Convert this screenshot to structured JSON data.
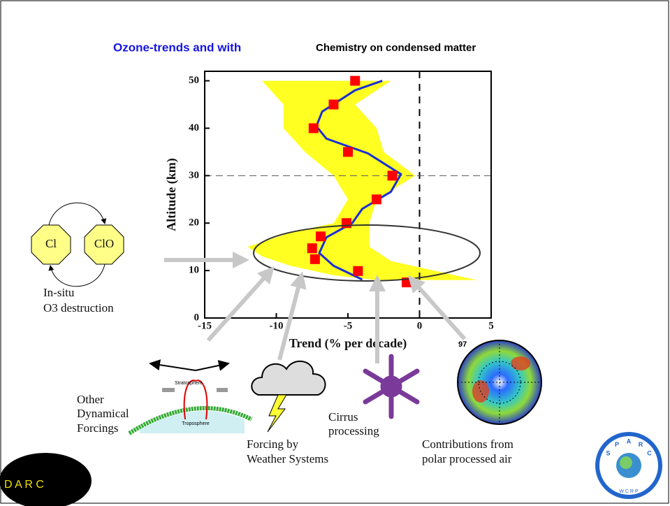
{
  "chart_data": {
    "type": "scatter",
    "x_label": "Trend (% per decade)",
    "y_label": "Altitude (km)",
    "xlim": [
      -15,
      5
    ],
    "ylim": [
      0,
      52
    ],
    "xticks": [
      -15,
      -10,
      -5,
      0,
      5
    ],
    "yticks": [
      0,
      10,
      20,
      30,
      40,
      50
    ],
    "vline": 0,
    "hline": 30,
    "points": {
      "color": "#ff0000",
      "x": [
        -4.5,
        -6.0,
        -7.4,
        -5.0,
        -1.9,
        -3.0,
        -5.1,
        -6.9,
        -7.5,
        -7.3,
        -4.3,
        -0.9
      ],
      "y": [
        50,
        45,
        40,
        35,
        30,
        25,
        20,
        17.2,
        14.7,
        12.4,
        9.9,
        7.5
      ]
    },
    "line": {
      "color": "#1a2fd6",
      "x": [
        -2.6,
        -4.5,
        -6.8,
        -7.2,
        -6.5,
        -3.6,
        -1.3,
        -2.0,
        -4.0,
        -4.7,
        -6.5,
        -7.0,
        -6.0,
        -4.0
      ],
      "y": [
        50,
        48,
        43.5,
        40.4,
        37.8,
        34.7,
        30.3,
        26.6,
        23,
        20,
        17,
        13.7,
        11,
        8.1
      ]
    },
    "envelope": {
      "color": "#ffff22",
      "x": [
        -11,
        -9.5,
        -9.5,
        -8,
        -6,
        -5,
        -6,
        -9,
        -12,
        -11,
        -9,
        -6,
        -3,
        4,
        1,
        -2,
        -3.5,
        -3.5,
        -3,
        -0.3,
        -2.5,
        -3,
        -4.5,
        -2
      ],
      "y": [
        50,
        45,
        40,
        35,
        30,
        25,
        20,
        18,
        15,
        13,
        11,
        9,
        8,
        8,
        10,
        12,
        15,
        20,
        25,
        30,
        35,
        40,
        45,
        50
      ]
    }
  },
  "slide": {
    "title_blue": "Ozone-trends and with",
    "title_black": "Chemistry on condensed matter",
    "cycle_left": "Cl",
    "cycle_right": "ClO",
    "insitu": [
      "In-situ",
      "O3 destruction"
    ],
    "dynamical": [
      "Other",
      "Dynamical",
      "Forcings"
    ],
    "stratosphere": "Stratosphere",
    "troposphere": "Troposphere",
    "weather": [
      "Forcing by",
      "Weather Systems"
    ],
    "cirrus": [
      "Cirrus",
      "processing"
    ],
    "polar": [
      "Contributions from",
      "polar processed air"
    ],
    "polar_year": "97",
    "darc": "D A R C",
    "sparc": [
      "S",
      "P",
      "A",
      "R",
      "C"
    ],
    "wcrp": "W C R P"
  }
}
